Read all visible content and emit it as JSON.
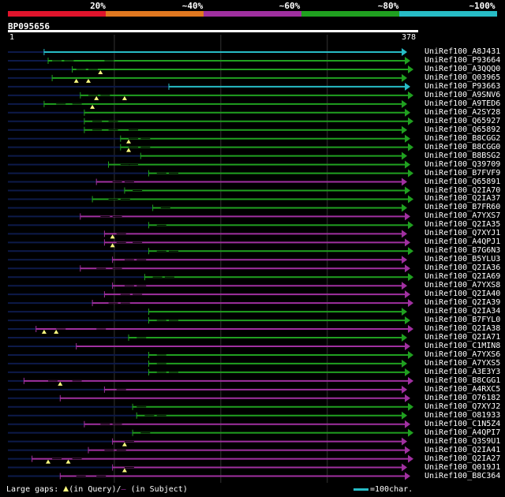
{
  "colors": {
    "identity_20": "#e0142c",
    "identity_40": "#e07820",
    "identity_60": "#a030a0",
    "identity_80": "#20a020",
    "identity_100": "#27bcc6",
    "query_line": "#0d1a4a",
    "gridline": "#333333"
  },
  "scale": {
    "labels": [
      "20%",
      "~40%",
      "~60%",
      "~80%",
      "~100%"
    ]
  },
  "query": {
    "id": "BP095656",
    "start": "1",
    "end": "378",
    "length": 378
  },
  "hits": [
    {
      "name": "UniRef100_A8J431",
      "start": 0.09,
      "id": 100,
      "mid": [],
      "tri": []
    },
    {
      "name": "UniRef100_P93664",
      "start": 0.1,
      "id": 80,
      "mid": [
        0.11,
        0.14,
        0.24
      ],
      "tri": []
    },
    {
      "name": "UniRef100_A3QQQ0",
      "start": 0.16,
      "id": 80,
      "mid": [
        0.17,
        0.2
      ],
      "tri": [
        0.23
      ]
    },
    {
      "name": "UniRef100_Q03965",
      "start": 0.11,
      "id": 80,
      "mid": [],
      "tri": [
        0.17,
        0.2
      ]
    },
    {
      "name": "UniRef100_P93663",
      "start": 0.4,
      "id": 100,
      "mid": [],
      "tri": []
    },
    {
      "name": "UniRef100_A9SNV6",
      "start": 0.18,
      "id": 80,
      "mid": [
        0.2,
        0.23
      ],
      "tri": [
        0.22,
        0.29
      ]
    },
    {
      "name": "UniRef100_A9TED6",
      "start": 0.09,
      "id": 80,
      "mid": [
        0.12,
        0.16
      ],
      "tri": [
        0.21
      ]
    },
    {
      "name": "UniRef100_A2SY28",
      "start": 0.19,
      "id": 80,
      "mid": [],
      "tri": []
    },
    {
      "name": "UniRef100_Q65927",
      "start": 0.19,
      "id": 80,
      "mid": [
        0.21,
        0.25
      ],
      "tri": []
    },
    {
      "name": "UniRef100_Q65892",
      "start": 0.19,
      "id": 80,
      "mid": [
        0.21,
        0.25,
        0.3
      ],
      "tri": []
    },
    {
      "name": "UniRef100_B8CGG2",
      "start": 0.28,
      "id": 80,
      "mid": [
        0.3,
        0.33
      ],
      "tri": [
        0.3
      ]
    },
    {
      "name": "UniRef100_B8CGG0",
      "start": 0.28,
      "id": 80,
      "mid": [
        0.3,
        0.33
      ],
      "tri": [
        0.3
      ]
    },
    {
      "name": "UniRef100_B8BSG2",
      "start": 0.33,
      "id": 80,
      "mid": [],
      "tri": []
    },
    {
      "name": "UniRef100_Q39709",
      "start": 0.25,
      "id": 80,
      "mid": [
        0.28,
        0.3
      ],
      "tri": []
    },
    {
      "name": "UniRef100_B7FVF9",
      "start": 0.35,
      "id": 80,
      "mid": [
        0.37,
        0.4
      ],
      "tri": []
    },
    {
      "name": "UniRef100_Q65891",
      "start": 0.22,
      "id": 60,
      "mid": [
        0.26,
        0.29
      ],
      "tri": []
    },
    {
      "name": "UniRef100_Q2IA70",
      "start": 0.29,
      "id": 80,
      "mid": [
        0.31
      ],
      "tri": []
    },
    {
      "name": "UniRef100_Q2IA37",
      "start": 0.21,
      "id": 80,
      "mid": [
        0.25,
        0.28
      ],
      "tri": []
    },
    {
      "name": "UniRef100_B7FR60",
      "start": 0.36,
      "id": 80,
      "mid": [
        0.38
      ],
      "tri": []
    },
    {
      "name": "UniRef100_A7YXS7",
      "start": 0.18,
      "id": 60,
      "mid": [
        0.23,
        0.26
      ],
      "tri": []
    },
    {
      "name": "UniRef100_Q2IA35",
      "start": 0.35,
      "id": 80,
      "mid": [
        0.37
      ],
      "tri": []
    },
    {
      "name": "UniRef100_Q7XYJ1",
      "start": 0.24,
      "id": 60,
      "mid": [
        0.27
      ],
      "tri": [
        0.26
      ]
    },
    {
      "name": "UniRef100_A4QPJ1",
      "start": 0.24,
      "id": 60,
      "mid": [
        0.27,
        0.31
      ],
      "tri": [
        0.26
      ]
    },
    {
      "name": "UniRef100_B7G6N3",
      "start": 0.35,
      "id": 80,
      "mid": [
        0.37,
        0.4
      ],
      "tri": []
    },
    {
      "name": "UniRef100_B5YLU3",
      "start": 0.26,
      "id": 60,
      "mid": [
        0.29,
        0.32
      ],
      "tri": []
    },
    {
      "name": "UniRef100_Q2IA36",
      "start": 0.18,
      "id": 60,
      "mid": [
        0.22,
        0.26
      ],
      "tri": []
    },
    {
      "name": "UniRef100_Q2IA69",
      "start": 0.34,
      "id": 80,
      "mid": [
        0.36,
        0.39
      ],
      "tri": []
    },
    {
      "name": "UniRef100_A7YXS8",
      "start": 0.26,
      "id": 60,
      "mid": [
        0.29,
        0.32
      ],
      "tri": []
    },
    {
      "name": "UniRef100_Q2IA40",
      "start": 0.24,
      "id": 60,
      "mid": [
        0.28,
        0.31
      ],
      "tri": []
    },
    {
      "name": "UniRef100_Q2IA39",
      "start": 0.21,
      "id": 60,
      "mid": [
        0.25,
        0.28
      ],
      "tri": []
    },
    {
      "name": "UniRef100_Q2IA34",
      "start": 0.35,
      "id": 80,
      "mid": [],
      "tri": []
    },
    {
      "name": "UniRef100_B7FYL0",
      "start": 0.35,
      "id": 80,
      "mid": [
        0.37,
        0.4
      ],
      "tri": []
    },
    {
      "name": "UniRef100_Q2IA38",
      "start": 0.07,
      "id": 60,
      "mid": [
        0.12,
        0.22
      ],
      "tri": [
        0.09,
        0.12
      ]
    },
    {
      "name": "UniRef100_Q2IA71",
      "start": 0.3,
      "id": 80,
      "mid": [
        0.32
      ],
      "tri": []
    },
    {
      "name": "UniRef100_C1MIN8",
      "start": 0.17,
      "id": 60,
      "mid": [],
      "tri": []
    },
    {
      "name": "UniRef100_A7YXS6",
      "start": 0.35,
      "id": 80,
      "mid": [
        0.37
      ],
      "tri": []
    },
    {
      "name": "UniRef100_A7YXS5",
      "start": 0.35,
      "id": 80,
      "mid": [
        0.37
      ],
      "tri": []
    },
    {
      "name": "UniRef100_A3E3Y3",
      "start": 0.35,
      "id": 80,
      "mid": [
        0.37,
        0.4
      ],
      "tri": []
    },
    {
      "name": "UniRef100_B8CGG1",
      "start": 0.04,
      "id": 60,
      "mid": [
        0.1,
        0.16
      ],
      "tri": [
        0.13
      ]
    },
    {
      "name": "UniRef100_A4RXC5",
      "start": 0.24,
      "id": 60,
      "mid": [
        0.27
      ],
      "tri": []
    },
    {
      "name": "UniRef100_O76182",
      "start": 0.13,
      "id": 60,
      "mid": [],
      "tri": []
    },
    {
      "name": "UniRef100_Q7XYJ2",
      "start": 0.31,
      "id": 80,
      "mid": [
        0.32
      ],
      "tri": []
    },
    {
      "name": "UniRef100_O81933",
      "start": 0.32,
      "id": 80,
      "mid": [
        0.34,
        0.37
      ],
      "tri": []
    },
    {
      "name": "UniRef100_C1N5Z4",
      "start": 0.19,
      "id": 60,
      "mid": [
        0.23,
        0.26
      ],
      "tri": []
    },
    {
      "name": "UniRef100_A4QPI7",
      "start": 0.31,
      "id": 80,
      "mid": [
        0.33
      ],
      "tri": []
    },
    {
      "name": "UniRef100_Q3S9U1",
      "start": 0.26,
      "id": 60,
      "mid": [
        0.29
      ],
      "tri": [
        0.29
      ]
    },
    {
      "name": "UniRef100_Q2IA41",
      "start": 0.2,
      "id": 60,
      "mid": [
        0.24,
        0.27
      ],
      "tri": []
    },
    {
      "name": "UniRef100_Q2IA27",
      "start": 0.06,
      "id": 60,
      "mid": [
        0.11,
        0.16
      ],
      "tri": [
        0.1,
        0.15
      ]
    },
    {
      "name": "UniRef100_Q019J1",
      "start": 0.26,
      "id": 60,
      "mid": [
        0.29
      ],
      "tri": [
        0.29
      ]
    },
    {
      "name": "UniRef100_B8C364",
      "start": 0.13,
      "id": 60,
      "mid": [
        0.17,
        0.22
      ],
      "tri": []
    }
  ],
  "footer": {
    "gaps_label": "Large gaps:",
    "gaps_query": "(in Query)",
    "gaps_subject": "(in Subject)",
    "scale_label": "=100char."
  }
}
